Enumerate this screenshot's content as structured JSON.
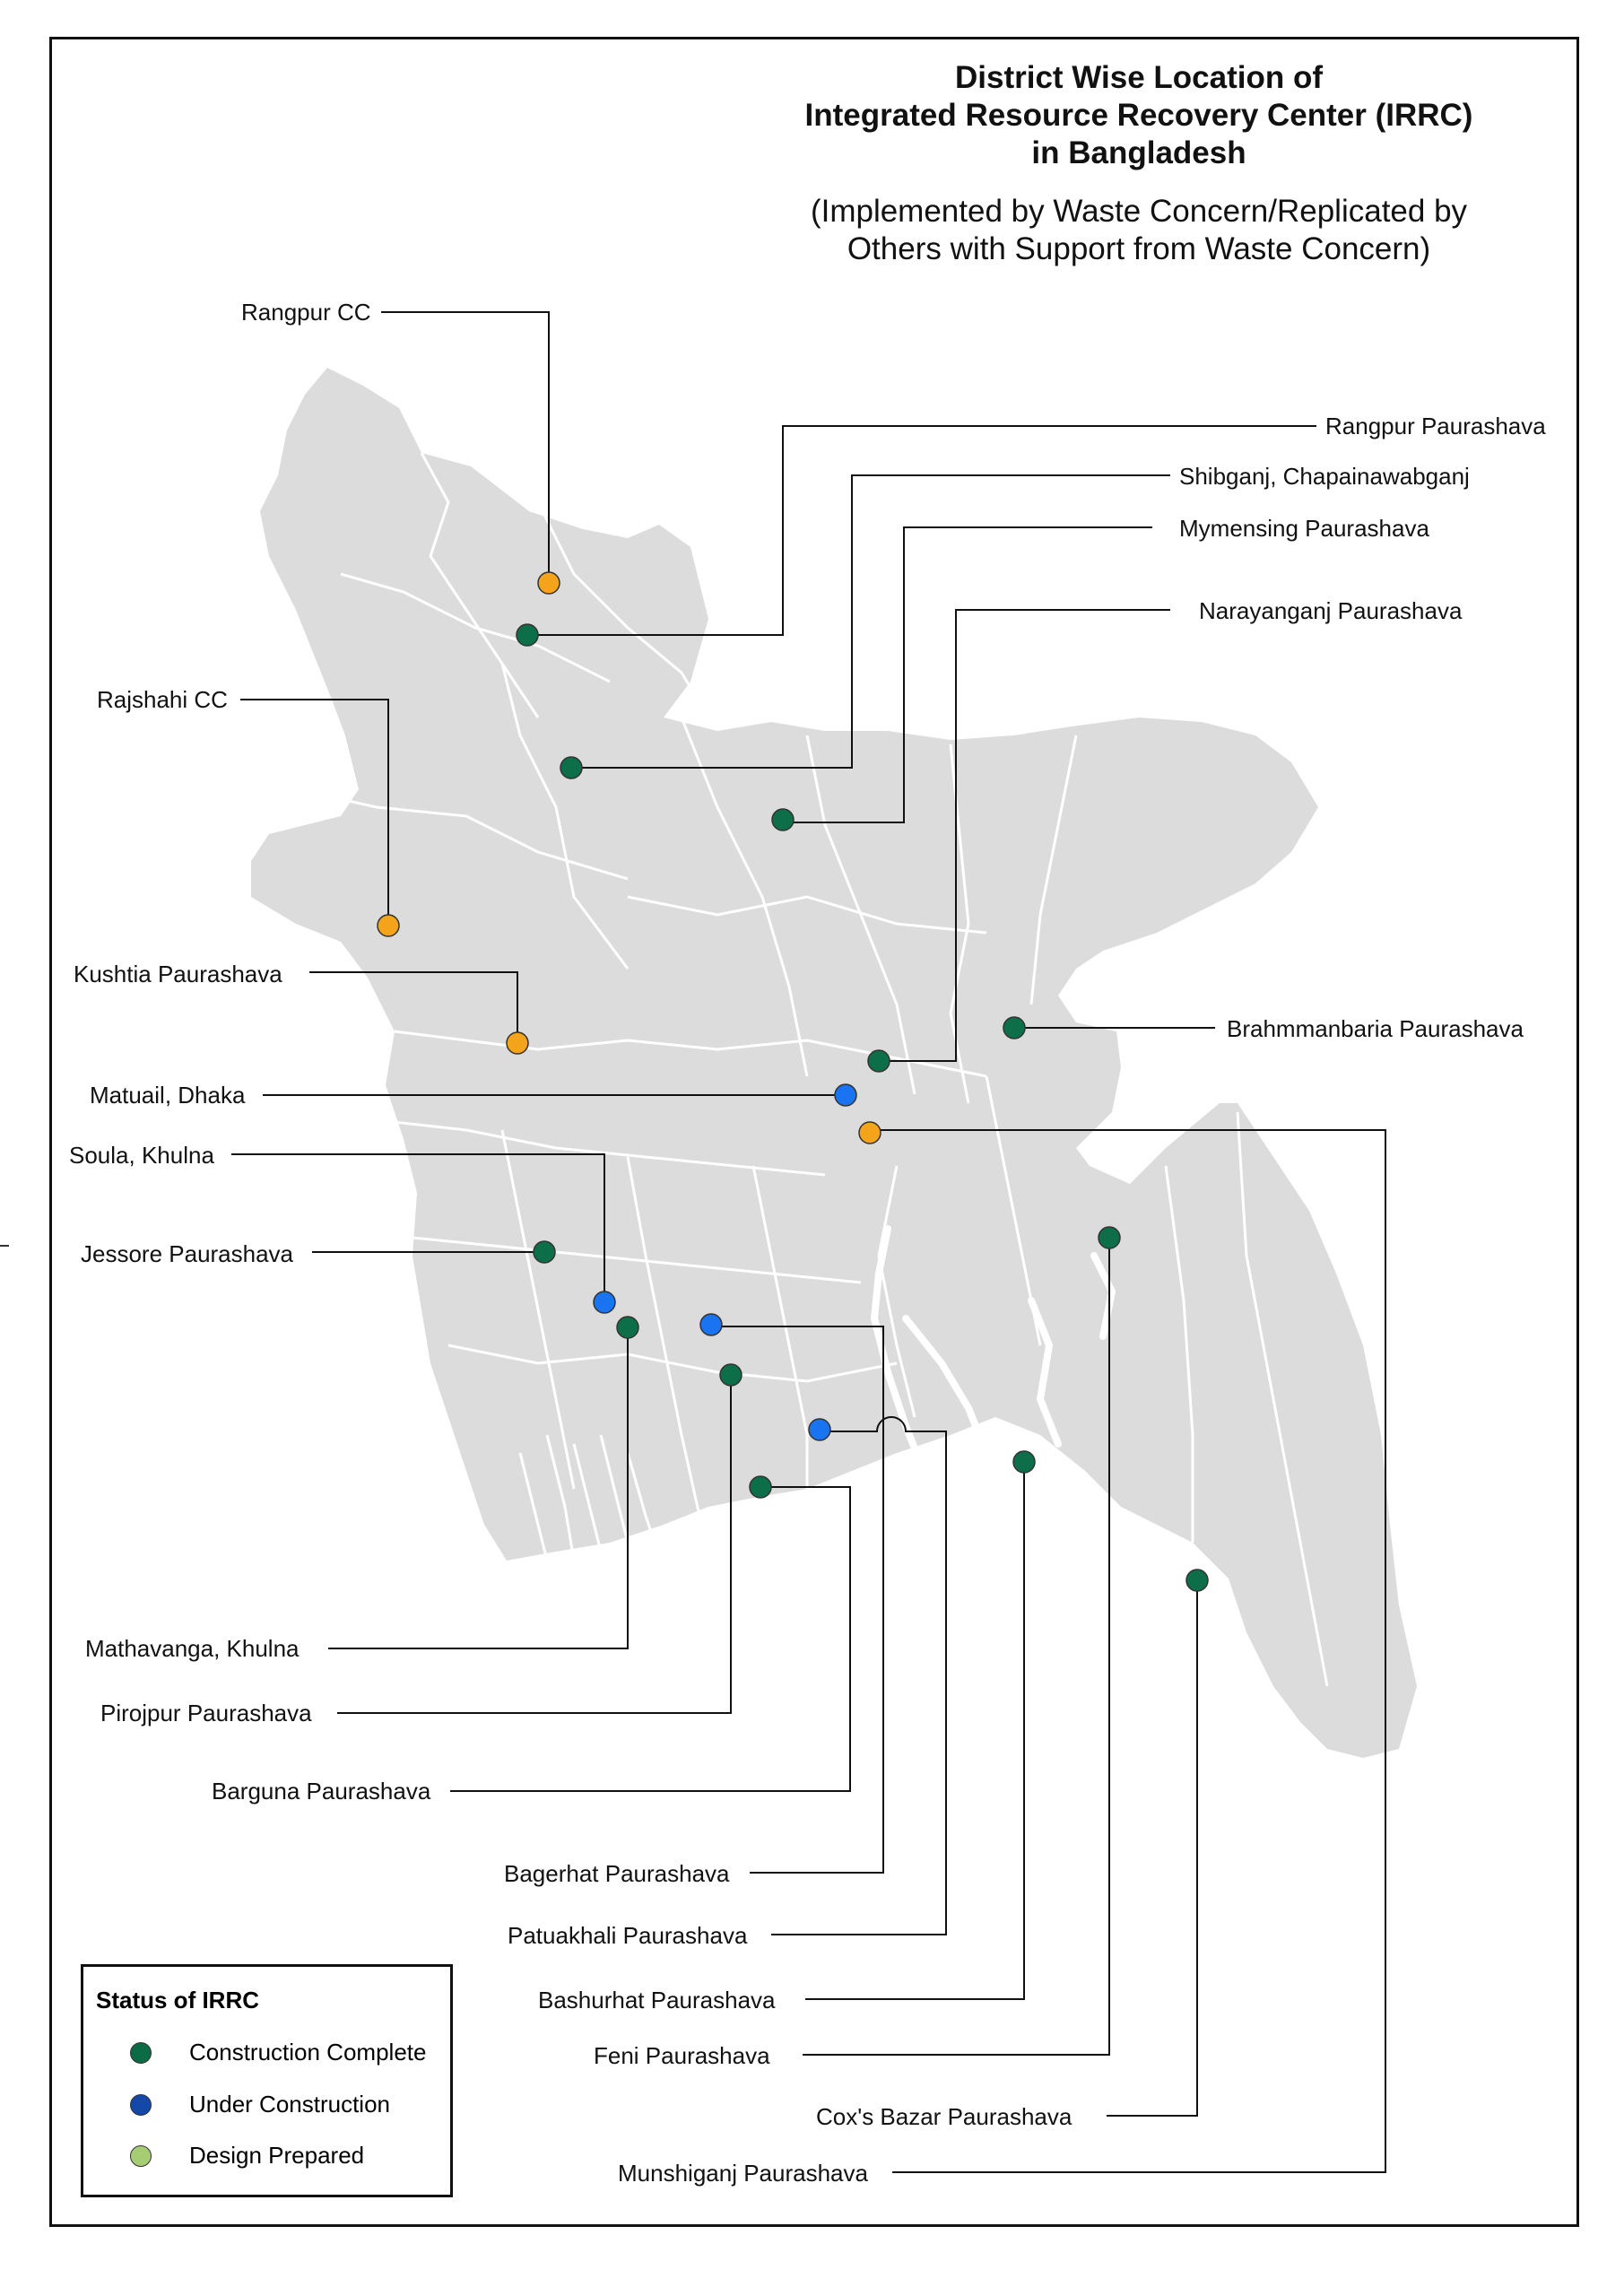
{
  "title": {
    "line1": "District Wise Location of",
    "line2": "Integrated Resource Recovery Center (IRRC)",
    "line3": "in Bangladesh"
  },
  "subtitle": {
    "line1": "(Implemented by Waste Concern/Replicated by",
    "line2": "Others with Support from Waste Concern)"
  },
  "legend": {
    "title": "Status of IRRC",
    "items": [
      {
        "label": "Construction Complete",
        "color": "#0b6b45"
      },
      {
        "label": "Under Construction",
        "color": "#1448a8"
      },
      {
        "label": "Design Prepared",
        "color": "#a6cc74"
      }
    ]
  },
  "colors": {
    "construction_complete": "#0d6f4a",
    "under_construction": "#1a73f0",
    "design_prepared_marker": "#f4a41a",
    "land": "#dcdcdc",
    "boundary": "#ffffff"
  },
  "locations": [
    {
      "id": "rangpur-cc",
      "label": "Rangpur CC",
      "status": "design"
    },
    {
      "id": "rangpur-paurashava",
      "label": "Rangpur Paurashava",
      "status": "complete"
    },
    {
      "id": "shibganj",
      "label": "Shibganj, Chapainawabganj",
      "status": "complete"
    },
    {
      "id": "mymensing",
      "label": "Mymensing Paurashava",
      "status": "complete"
    },
    {
      "id": "narayanganj",
      "label": "Narayanganj Paurashava",
      "status": "complete"
    },
    {
      "id": "rajshahi-cc",
      "label": "Rajshahi CC",
      "status": "design"
    },
    {
      "id": "kushtia",
      "label": "Kushtia Paurashava",
      "status": "design"
    },
    {
      "id": "brahmmanbaria",
      "label": "Brahmmanbaria Paurashava",
      "status": "complete"
    },
    {
      "id": "matuail",
      "label": "Matuail, Dhaka",
      "status": "under"
    },
    {
      "id": "soula",
      "label": "Soula, Khulna",
      "status": "under"
    },
    {
      "id": "jessore",
      "label": "Jessore Paurashava",
      "status": "complete"
    },
    {
      "id": "mathavanga",
      "label": "Mathavanga, Khulna",
      "status": "complete"
    },
    {
      "id": "pirojpur",
      "label": "Pirojpur Paurashava",
      "status": "complete"
    },
    {
      "id": "barguna",
      "label": "Barguna Paurashava",
      "status": "complete"
    },
    {
      "id": "bagerhat",
      "label": "Bagerhat Paurashava",
      "status": "under"
    },
    {
      "id": "patuakhali",
      "label": "Patuakhali Paurashava",
      "status": "under"
    },
    {
      "id": "bashurhat",
      "label": "Bashurhat Paurashava",
      "status": "complete"
    },
    {
      "id": "feni",
      "label": "Feni Paurashava",
      "status": "complete"
    },
    {
      "id": "coxs-bazar",
      "label": "Cox's Bazar Paurashava",
      "status": "complete"
    },
    {
      "id": "munshiganj",
      "label": "Munshiganj Paurashava",
      "status": "design"
    }
  ]
}
